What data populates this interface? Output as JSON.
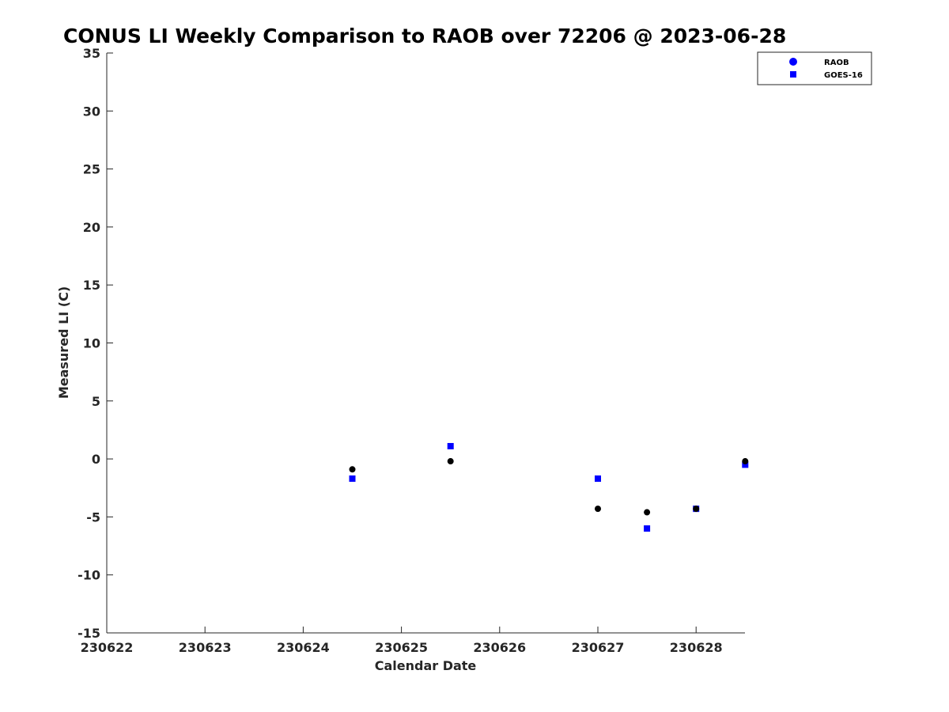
{
  "chart_data": {
    "type": "scatter",
    "title": "CONUS LI Weekly Comparison to RAOB over 72206 @ 2023-06-28",
    "xlabel": "Calendar Date",
    "ylabel": "Measured LI (C)",
    "xlim": [
      "230622",
      "230628 12Z"
    ],
    "ylim": [
      -15,
      35
    ],
    "x_tick_labels": [
      "230622",
      "230623",
      "230624",
      "230625",
      "230626",
      "230627",
      "230628"
    ],
    "y_tick_values": [
      -15,
      -10,
      -5,
      0,
      5,
      10,
      15,
      20,
      25,
      30,
      35
    ],
    "grid": false,
    "legend_position": "top-right",
    "legend": [
      {
        "name": "RAOB",
        "marker": "circle",
        "color": "#0000ff"
      },
      {
        "name": "GOES-16",
        "marker": "square",
        "color": "#0000ff"
      }
    ],
    "series": [
      {
        "name": "RAOB",
        "marker": "circle",
        "color": "#000000",
        "x": [
          "230624 12Z",
          "230625 12Z",
          "230627 00Z",
          "230627 12Z",
          "230628 00Z",
          "230628 12Z"
        ],
        "y": [
          -0.9,
          -0.2,
          -4.3,
          -4.6,
          -4.3,
          -0.2
        ]
      },
      {
        "name": "GOES-16",
        "marker": "square",
        "color": "#0000ff",
        "x": [
          "230624 12Z",
          "230625 12Z",
          "230627 00Z",
          "230627 12Z",
          "230628 00Z",
          "230628 12Z"
        ],
        "y": [
          -1.7,
          1.1,
          -1.7,
          -6.0,
          -4.3,
          -0.5
        ]
      }
    ]
  }
}
